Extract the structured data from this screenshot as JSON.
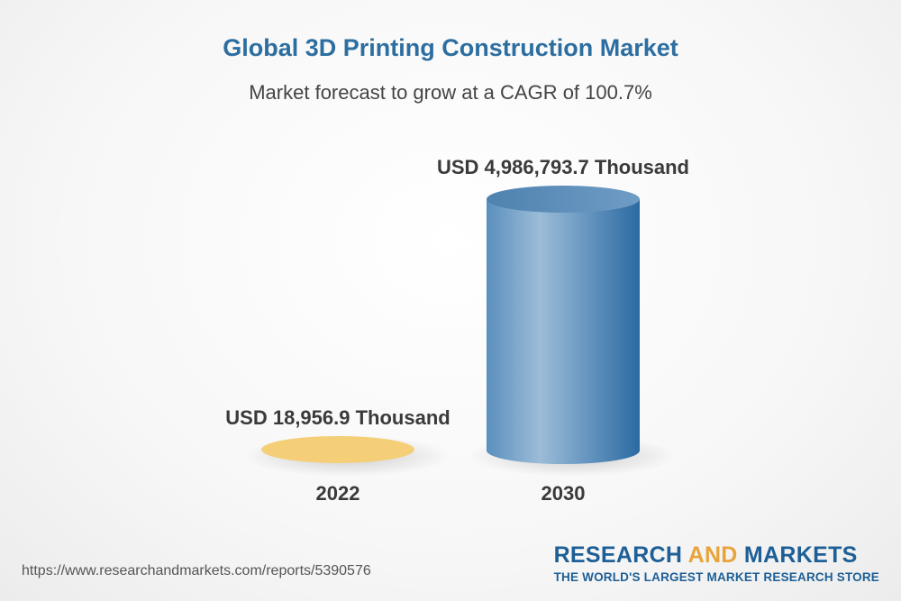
{
  "chart_data": {
    "type": "bar",
    "title": "Global 3D Printing Construction Market",
    "subtitle": "Market forecast to grow at a CAGR of 100.7%",
    "categories": [
      "2022",
      "2030"
    ],
    "values": [
      18956.9,
      4986793.7
    ],
    "value_labels": [
      "USD 18,956.9 Thousand",
      "USD 4,986,793.7 Thousand"
    ],
    "unit": "USD Thousand",
    "colors": [
      "#f5cf78",
      "#4f86b5"
    ],
    "grid": false
  },
  "footer": {
    "source_url": "https://www.researchandmarkets.com/reports/5390576"
  },
  "brand": {
    "name_part1": "RESEARCH ",
    "name_part2": "AND",
    "name_part3": " MARKETS",
    "tagline": "THE WORLD'S LARGEST MARKET RESEARCH STORE"
  }
}
